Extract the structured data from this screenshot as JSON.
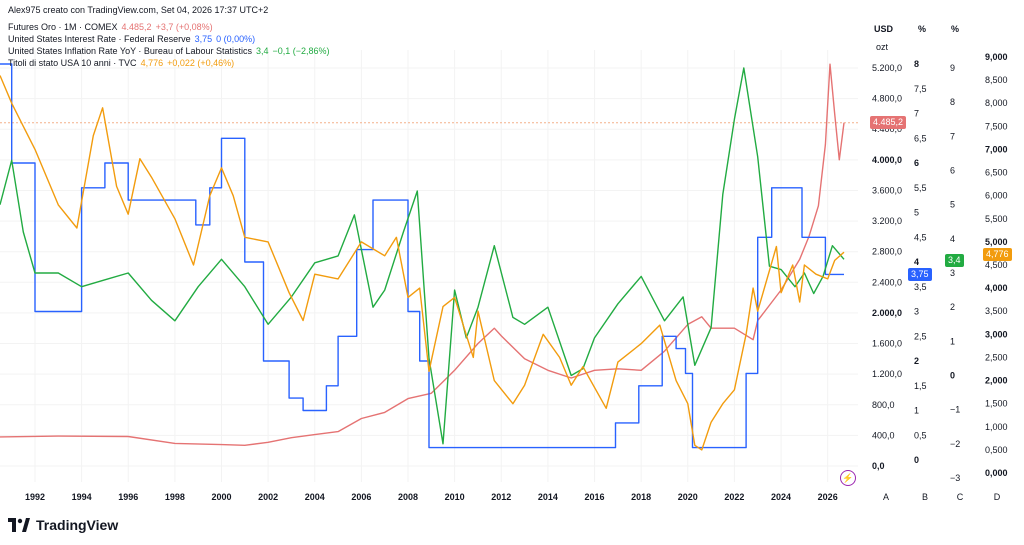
{
  "header": {
    "created_by": "Alex975 creato con TradingView.com, Set 04, 2026 17:37 UTC+2",
    "legend": [
      {
        "name": "Futures Oro · 1M · COMEX",
        "last": "4.485,2",
        "change": "+3,7 (+0,08%)",
        "color": "#e57373"
      },
      {
        "name": "United States Interest Rate · Federal Reserve",
        "last": "3,75",
        "change": "0 (0,00%)",
        "color": "#2962ff"
      },
      {
        "name": "United States Inflation Rate YoY · Bureau of Labour Statistics",
        "last": "3,4",
        "change": "−0,1 (−2,86%)",
        "color": "#22ab42"
      },
      {
        "name": "Titoli di stato USA 10 anni · TVC",
        "last": "4,776",
        "change": "+0,022 (+0,46%)",
        "color": "#f29c0e"
      }
    ]
  },
  "scales": {
    "A": {
      "head": "USD",
      "sub": "ozt",
      "ticks": [
        "5.200,0",
        "4.800,0",
        "4.400,0",
        "4.000,0",
        "3.600,0",
        "3.200,0",
        "2.800,0",
        "2.400,0",
        "2.000,0",
        "1.600,0",
        "1.200,0",
        "800,0",
        "400,0",
        "0,0"
      ],
      "bold": [
        "4.000,0",
        "2.000,0",
        "0,0"
      ]
    },
    "B": {
      "head": "%",
      "ticks": [
        "8",
        "7,5",
        "7",
        "6,5",
        "6",
        "5,5",
        "5",
        "4,5",
        "4",
        "3,5",
        "3",
        "2,5",
        "2",
        "1,5",
        "1",
        "0,5",
        "0"
      ],
      "bold": [
        "8",
        "6",
        "4",
        "2",
        "0"
      ]
    },
    "C": {
      "head": "%",
      "ticks": [
        "9",
        "8",
        "7",
        "6",
        "5",
        "4",
        "3",
        "2",
        "1",
        "0",
        "−1",
        "−2",
        "−3"
      ],
      "bold": [
        "0"
      ]
    },
    "D": {
      "ticks": [
        "9,000",
        "8,500",
        "8,000",
        "7,500",
        "7,000",
        "6,500",
        "6,000",
        "5,500",
        "5,000",
        "4,500",
        "4,000",
        "3,500",
        "3,000",
        "2,500",
        "2,000",
        "1,500",
        "1,000",
        "0,500",
        "0,000"
      ],
      "bold": [
        "9,000",
        "7,000",
        "5,000",
        "4,000",
        "3,000",
        "2,000",
        "0,000"
      ]
    },
    "letters": [
      "A",
      "B",
      "C",
      "D"
    ]
  },
  "x_ticks": [
    "1992",
    "1994",
    "1996",
    "1998",
    "2000",
    "2002",
    "2004",
    "2006",
    "2008",
    "2010",
    "2012",
    "2014",
    "2016",
    "2018",
    "2020",
    "2022",
    "2024",
    "2026"
  ],
  "tags": {
    "gold": "4.485,2",
    "rate": "3,75",
    "inflation": "3,4",
    "treasury": "4,776"
  },
  "logo_text": "TradingView",
  "chart_data": {
    "type": "line",
    "x_unit": "year",
    "series": [
      {
        "name": "Futures Oro · 1M · COMEX",
        "scale": "A",
        "color": "#e57373",
        "points": [
          [
            1990.5,
            380
          ],
          [
            1993,
            390
          ],
          [
            1996,
            385
          ],
          [
            1998,
            295
          ],
          [
            2000,
            280
          ],
          [
            2001,
            270
          ],
          [
            2002,
            310
          ],
          [
            2003,
            370
          ],
          [
            2004,
            410
          ],
          [
            2005,
            450
          ],
          [
            2006,
            620
          ],
          [
            2007,
            700
          ],
          [
            2008,
            880
          ],
          [
            2009,
            950
          ],
          [
            2010,
            1250
          ],
          [
            2011,
            1600
          ],
          [
            2011.7,
            1800
          ],
          [
            2012,
            1700
          ],
          [
            2013,
            1400
          ],
          [
            2014,
            1250
          ],
          [
            2015,
            1150
          ],
          [
            2016,
            1250
          ],
          [
            2017,
            1270
          ],
          [
            2018,
            1250
          ],
          [
            2019,
            1500
          ],
          [
            2020,
            1850
          ],
          [
            2020.6,
            1950
          ],
          [
            2021,
            1800
          ],
          [
            2022,
            1800
          ],
          [
            2022.8,
            1650
          ],
          [
            2023,
            1900
          ],
          [
            2024,
            2300
          ],
          [
            2024.8,
            2700
          ],
          [
            2025.2,
            3000
          ],
          [
            2025.6,
            3400
          ],
          [
            2025.9,
            4200
          ],
          [
            2026.1,
            5250
          ],
          [
            2026.3,
            4600
          ],
          [
            2026.5,
            4000
          ],
          [
            2026.7,
            4485
          ]
        ]
      },
      {
        "name": "United States Interest Rate · Federal Reserve",
        "scale": "B",
        "color": "#2962ff",
        "points": [
          [
            1990.5,
            8
          ],
          [
            1991,
            6
          ],
          [
            1992,
            3
          ],
          [
            1993.5,
            3
          ],
          [
            1994,
            5.5
          ],
          [
            1995,
            6
          ],
          [
            1996,
            5.25
          ],
          [
            1998,
            5.25
          ],
          [
            1998.9,
            4.75
          ],
          [
            1999.5,
            5.5
          ],
          [
            2000,
            6.5
          ],
          [
            2000.5,
            6.5
          ],
          [
            2001,
            4
          ],
          [
            2001.8,
            2
          ],
          [
            2002.9,
            1.25
          ],
          [
            2003.5,
            1
          ],
          [
            2004.5,
            1.5
          ],
          [
            2005,
            2.5
          ],
          [
            2005.8,
            4.25
          ],
          [
            2006.5,
            5.25
          ],
          [
            2007.6,
            5.25
          ],
          [
            2008,
            3
          ],
          [
            2008.5,
            2
          ],
          [
            2008.9,
            0.25
          ],
          [
            2015.9,
            0.25
          ],
          [
            2016.9,
            0.75
          ],
          [
            2017.9,
            1.5
          ],
          [
            2018.9,
            2.5
          ],
          [
            2019.5,
            2.25
          ],
          [
            2019.9,
            1.75
          ],
          [
            2020.2,
            0.25
          ],
          [
            2022.1,
            0.25
          ],
          [
            2022.5,
            1.75
          ],
          [
            2023,
            4.5
          ],
          [
            2023.6,
            5.5
          ],
          [
            2024.6,
            5.5
          ],
          [
            2024.9,
            4.5
          ],
          [
            2025.5,
            4.5
          ],
          [
            2025.9,
            3.75
          ],
          [
            2026.7,
            3.75
          ]
        ]
      },
      {
        "name": "United States Inflation Rate YoY · Bureau of Labour Statistics",
        "scale": "C",
        "color": "#22ab42",
        "points": [
          [
            1990.5,
            5
          ],
          [
            1991,
            6.3
          ],
          [
            1991.5,
            4.2
          ],
          [
            1992,
            3
          ],
          [
            1993,
            3
          ],
          [
            1994,
            2.6
          ],
          [
            1995,
            2.8
          ],
          [
            1996,
            3
          ],
          [
            1997,
            2.2
          ],
          [
            1998,
            1.6
          ],
          [
            1999,
            2.6
          ],
          [
            2000,
            3.4
          ],
          [
            2001,
            2.6
          ],
          [
            2002,
            1.5
          ],
          [
            2003,
            2.3
          ],
          [
            2004,
            3.3
          ],
          [
            2005,
            3.5
          ],
          [
            2005.7,
            4.7
          ],
          [
            2006.5,
            2
          ],
          [
            2007,
            2.5
          ],
          [
            2007.8,
            4.2
          ],
          [
            2008.4,
            5.4
          ],
          [
            2008.9,
            0.5
          ],
          [
            2009.5,
            -2.0
          ],
          [
            2010,
            2.5
          ],
          [
            2010.5,
            1.1
          ],
          [
            2011,
            2
          ],
          [
            2011.7,
            3.8
          ],
          [
            2012.5,
            1.7
          ],
          [
            2013,
            1.5
          ],
          [
            2014,
            2
          ],
          [
            2015,
            0
          ],
          [
            2015.5,
            0.2
          ],
          [
            2016,
            1.1
          ],
          [
            2017,
            2.1
          ],
          [
            2018,
            2.9
          ],
          [
            2019,
            1.6
          ],
          [
            2019.8,
            2.3
          ],
          [
            2020.3,
            0.3
          ],
          [
            2021,
            1.4
          ],
          [
            2021.5,
            5.3
          ],
          [
            2022,
            7.5
          ],
          [
            2022.4,
            9.0
          ],
          [
            2023,
            6.4
          ],
          [
            2023.5,
            3.2
          ],
          [
            2024,
            3.1
          ],
          [
            2024.6,
            2.6
          ],
          [
            2025,
            3.0
          ],
          [
            2025.4,
            2.4
          ],
          [
            2025.8,
            2.9
          ],
          [
            2026.2,
            3.8
          ],
          [
            2026.7,
            3.4
          ]
        ]
      },
      {
        "name": "Titoli di stato USA 10 anni · TVC",
        "scale": "D",
        "color": "#f29c0e",
        "points": [
          [
            1990.5,
            8.6
          ],
          [
            1991,
            8.0
          ],
          [
            1991.5,
            7.5
          ],
          [
            1992,
            7.0
          ],
          [
            1993,
            5.8
          ],
          [
            1993.8,
            5.3
          ],
          [
            1994.5,
            7.3
          ],
          [
            1994.9,
            7.9
          ],
          [
            1995.5,
            6.2
          ],
          [
            1996,
            5.6
          ],
          [
            1996.5,
            6.8
          ],
          [
            1997,
            6.4
          ],
          [
            1998,
            5.5
          ],
          [
            1998.8,
            4.5
          ],
          [
            1999.5,
            6.0
          ],
          [
            2000,
            6.6
          ],
          [
            2000.5,
            6.0
          ],
          [
            2001,
            5.1
          ],
          [
            2002,
            5.0
          ],
          [
            2002.9,
            3.9
          ],
          [
            2003.5,
            3.3
          ],
          [
            2004,
            4.3
          ],
          [
            2005,
            4.2
          ],
          [
            2006,
            5.0
          ],
          [
            2007,
            4.7
          ],
          [
            2007.5,
            5.1
          ],
          [
            2008,
            3.8
          ],
          [
            2008.5,
            4.0
          ],
          [
            2008.9,
            2.2
          ],
          [
            2009.5,
            3.6
          ],
          [
            2010,
            3.8
          ],
          [
            2010.8,
            2.5
          ],
          [
            2011,
            3.5
          ],
          [
            2011.7,
            2.0
          ],
          [
            2012.5,
            1.5
          ],
          [
            2013,
            1.9
          ],
          [
            2013.8,
            3.0
          ],
          [
            2014.5,
            2.5
          ],
          [
            2015,
            1.9
          ],
          [
            2015.5,
            2.3
          ],
          [
            2016.5,
            1.4
          ],
          [
            2017,
            2.4
          ],
          [
            2018,
            2.8
          ],
          [
            2018.8,
            3.2
          ],
          [
            2019.5,
            2.0
          ],
          [
            2020,
            1.5
          ],
          [
            2020.3,
            0.6
          ],
          [
            2020.6,
            0.5
          ],
          [
            2021,
            1.1
          ],
          [
            2021.5,
            1.5
          ],
          [
            2022,
            1.8
          ],
          [
            2022.5,
            3.0
          ],
          [
            2022.8,
            4.0
          ],
          [
            2023,
            3.5
          ],
          [
            2023.8,
            4.9
          ],
          [
            2024,
            3.9
          ],
          [
            2024.5,
            4.5
          ],
          [
            2024.8,
            3.7
          ],
          [
            2025,
            4.5
          ],
          [
            2025.5,
            4.3
          ],
          [
            2026,
            4.2
          ],
          [
            2026.3,
            4.6
          ],
          [
            2026.7,
            4.776
          ]
        ]
      }
    ]
  }
}
